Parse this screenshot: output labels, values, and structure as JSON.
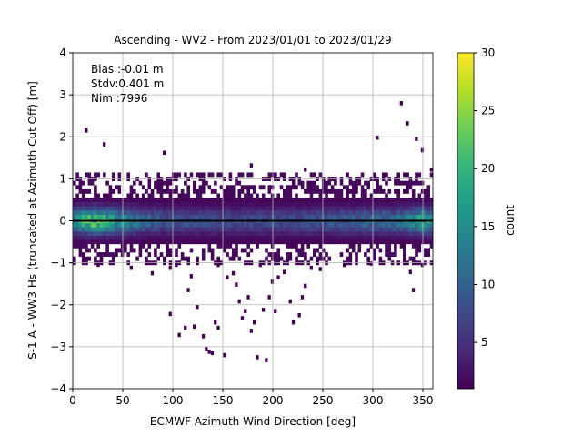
{
  "chart_data": {
    "type": "heatmap",
    "title": "Ascending - WV2 - From 2023/01/01 to 2023/01/29",
    "xlabel": "ECMWF Azimuth Wind Direction [deg]",
    "ylabel": "S-1 A - WW3 Hs (truncated at Azimuth Cut Off) [m]",
    "xlim": [
      0,
      360
    ],
    "ylim": [
      -4,
      4
    ],
    "x_ticks": [
      "0",
      "50",
      "100",
      "150",
      "200",
      "250",
      "300",
      "350"
    ],
    "y_ticks": [
      "−4",
      "−3",
      "−2",
      "−1",
      "0",
      "1",
      "2",
      "3",
      "4"
    ],
    "grid": true,
    "bin_size": {
      "x": 3,
      "y": 0.1
    },
    "stats": [
      {
        "label": "Bias :-0.01 m"
      },
      {
        "label": "Stdv:0.401 m"
      },
      {
        "label": "Nim :7996"
      }
    ],
    "reference_line": {
      "y": 0,
      "color": "#000000"
    },
    "colorbar": {
      "label": "count",
      "min": 1,
      "max": 30,
      "ticks": [
        "5",
        "10",
        "15",
        "20",
        "25",
        "30"
      ],
      "colormap": "viridis",
      "colors": [
        "#440154",
        "#482878",
        "#3e4989",
        "#31688e",
        "#26828e",
        "#1f9e89",
        "#35b779",
        "#6ece58",
        "#b5de2b",
        "#fde725"
      ]
    },
    "core_band": {
      "y_range": [
        -0.55,
        0.55
      ],
      "peak_counts_by_direction": [
        {
          "x": 3,
          "count": 18
        },
        {
          "x": 15,
          "count": 24
        },
        {
          "x": 24,
          "count": 25
        },
        {
          "x": 33,
          "count": 22
        },
        {
          "x": 48,
          "count": 19
        },
        {
          "x": 60,
          "count": 15
        },
        {
          "x": 90,
          "count": 10
        },
        {
          "x": 150,
          "count": 9
        },
        {
          "x": 210,
          "count": 9
        },
        {
          "x": 270,
          "count": 11
        },
        {
          "x": 330,
          "count": 14
        },
        {
          "x": 345,
          "count": 20
        },
        {
          "x": 351,
          "count": 22
        },
        {
          "x": 357,
          "count": 19
        }
      ]
    },
    "outliers": [
      {
        "x": 12,
        "y": 2.15
      },
      {
        "x": 30,
        "y": 1.82
      },
      {
        "x": 90,
        "y": 1.62
      },
      {
        "x": 327,
        "y": 2.8
      },
      {
        "x": 333,
        "y": 2.32
      },
      {
        "x": 303,
        "y": 1.98
      },
      {
        "x": 348,
        "y": 1.68
      },
      {
        "x": 342,
        "y": 1.95
      },
      {
        "x": 177,
        "y": 1.32
      },
      {
        "x": 231,
        "y": 1.22
      },
      {
        "x": 357,
        "y": 1.22
      },
      {
        "x": 9,
        "y": -0.92
      },
      {
        "x": 24,
        "y": -1.05
      },
      {
        "x": 57,
        "y": -1.12
      },
      {
        "x": 117,
        "y": -1.32
      },
      {
        "x": 102,
        "y": -1.05
      },
      {
        "x": 114,
        "y": -1.65
      },
      {
        "x": 123,
        "y": -2.05
      },
      {
        "x": 111,
        "y": -2.55
      },
      {
        "x": 105,
        "y": -2.72
      },
      {
        "x": 96,
        "y": -2.22
      },
      {
        "x": 120,
        "y": -2.52
      },
      {
        "x": 129,
        "y": -2.75
      },
      {
        "x": 132,
        "y": -3.05
      },
      {
        "x": 135,
        "y": -3.12
      },
      {
        "x": 138,
        "y": -3.15
      },
      {
        "x": 141,
        "y": -2.42
      },
      {
        "x": 144,
        "y": -2.55
      },
      {
        "x": 150,
        "y": -3.2
      },
      {
        "x": 159,
        "y": -1.25
      },
      {
        "x": 162,
        "y": -1.52
      },
      {
        "x": 165,
        "y": -1.92
      },
      {
        "x": 168,
        "y": -2.32
      },
      {
        "x": 171,
        "y": -2.15
      },
      {
        "x": 174,
        "y": -1.82
      },
      {
        "x": 177,
        "y": -2.62
      },
      {
        "x": 180,
        "y": -2.42
      },
      {
        "x": 183,
        "y": -3.25
      },
      {
        "x": 189,
        "y": -2.12
      },
      {
        "x": 192,
        "y": -3.32
      },
      {
        "x": 195,
        "y": -1.82
      },
      {
        "x": 198,
        "y": -1.45
      },
      {
        "x": 201,
        "y": -2.15
      },
      {
        "x": 210,
        "y": -1.22
      },
      {
        "x": 216,
        "y": -1.92
      },
      {
        "x": 219,
        "y": -2.42
      },
      {
        "x": 225,
        "y": -2.25
      },
      {
        "x": 228,
        "y": -1.82
      },
      {
        "x": 231,
        "y": -1.55
      },
      {
        "x": 237,
        "y": -1.12
      },
      {
        "x": 246,
        "y": -1.15
      },
      {
        "x": 270,
        "y": -1.05
      },
      {
        "x": 297,
        "y": -1.02
      },
      {
        "x": 330,
        "y": -0.95
      },
      {
        "x": 336,
        "y": -1.22
      },
      {
        "x": 339,
        "y": -1.65
      },
      {
        "x": 348,
        "y": -1.05
      },
      {
        "x": 78,
        "y": -1.25
      },
      {
        "x": 96,
        "y": -1.12
      },
      {
        "x": 144,
        "y": -1.05
      },
      {
        "x": 153,
        "y": -1.35
      },
      {
        "x": 186,
        "y": -1.05
      },
      {
        "x": 204,
        "y": -1.35
      }
    ]
  }
}
